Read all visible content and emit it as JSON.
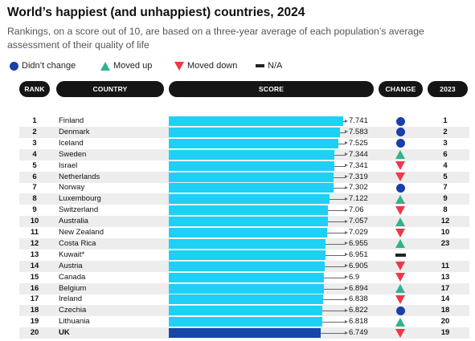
{
  "title": "World’s happiest (and unhappiest) countries, 2024",
  "subtitle": "Rankings, on a score out of 10, are based on a three-year average of each population’s average assessment of their quality of life",
  "legend": {
    "items": [
      {
        "key": "same",
        "label": "Didn’t change",
        "icon": "circle-icon",
        "color": "#1b3fa8"
      },
      {
        "key": "up",
        "label": "Moved up",
        "icon": "triangle-up-icon",
        "color": "#2fb48c"
      },
      {
        "key": "down",
        "label": "Moved down",
        "icon": "triangle-down-icon",
        "color": "#f0374a"
      },
      {
        "key": "na",
        "label": "N/A",
        "icon": "dash-icon",
        "color": "#222222"
      }
    ]
  },
  "headers": {
    "rank": "RANK",
    "country": "COUNTRY",
    "score": "SCORE",
    "change": "CHANGE",
    "prev": "2023"
  },
  "colors": {
    "bar": "#1ed0f5",
    "highlight": "#1546a8",
    "header": "#151515"
  },
  "chart_data": {
    "type": "bar",
    "orientation": "horizontal",
    "title": "World’s happiest (and unhappiest) countries, 2024",
    "xlim": [
      0,
      7.741
    ],
    "rows": [
      {
        "rank": "1",
        "country": "Finland",
        "score": 7.741,
        "change": "same",
        "prev": "1"
      },
      {
        "rank": "2",
        "country": "Denmark",
        "score": 7.583,
        "change": "same",
        "prev": "2"
      },
      {
        "rank": "3",
        "country": "Iceland",
        "score": 7.525,
        "change": "same",
        "prev": "3"
      },
      {
        "rank": "4",
        "country": "Sweden",
        "score": 7.344,
        "change": "up",
        "prev": "6"
      },
      {
        "rank": "5",
        "country": "Israel",
        "score": 7.341,
        "change": "down",
        "prev": "4"
      },
      {
        "rank": "6",
        "country": "Netherlands",
        "score": 7.319,
        "change": "down",
        "prev": "5"
      },
      {
        "rank": "7",
        "country": "Norway",
        "score": 7.302,
        "change": "same",
        "prev": "7"
      },
      {
        "rank": "8",
        "country": "Luxembourg",
        "score": 7.122,
        "change": "up",
        "prev": "9"
      },
      {
        "rank": "9",
        "country": "Switzerland",
        "score": 7.06,
        "change": "down",
        "prev": "8"
      },
      {
        "rank": "10",
        "country": "Australia",
        "score": 7.057,
        "change": "up",
        "prev": "12"
      },
      {
        "rank": "11",
        "country": "New Zealand",
        "score": 7.029,
        "change": "down",
        "prev": "10"
      },
      {
        "rank": "12",
        "country": "Costa Rica",
        "score": 6.955,
        "change": "up",
        "prev": "23"
      },
      {
        "rank": "13",
        "country": "Kuwait*",
        "score": 6.951,
        "change": "na",
        "prev": ""
      },
      {
        "rank": "14",
        "country": "Austria",
        "score": 6.905,
        "change": "down",
        "prev": "11"
      },
      {
        "rank": "15",
        "country": "Canada",
        "score": 6.9,
        "change": "down",
        "prev": "13"
      },
      {
        "rank": "16",
        "country": "Belgium",
        "score": 6.894,
        "change": "up",
        "prev": "17"
      },
      {
        "rank": "17",
        "country": "Ireland",
        "score": 6.838,
        "change": "down",
        "prev": "14"
      },
      {
        "rank": "18",
        "country": "Czechia",
        "score": 6.822,
        "change": "same",
        "prev": "18"
      },
      {
        "rank": "19",
        "country": "Lithuania",
        "score": 6.818,
        "change": "up",
        "prev": "20"
      },
      {
        "rank": "20",
        "country": "UK",
        "score": 6.749,
        "change": "down",
        "prev": "19",
        "highlight": true
      }
    ]
  }
}
